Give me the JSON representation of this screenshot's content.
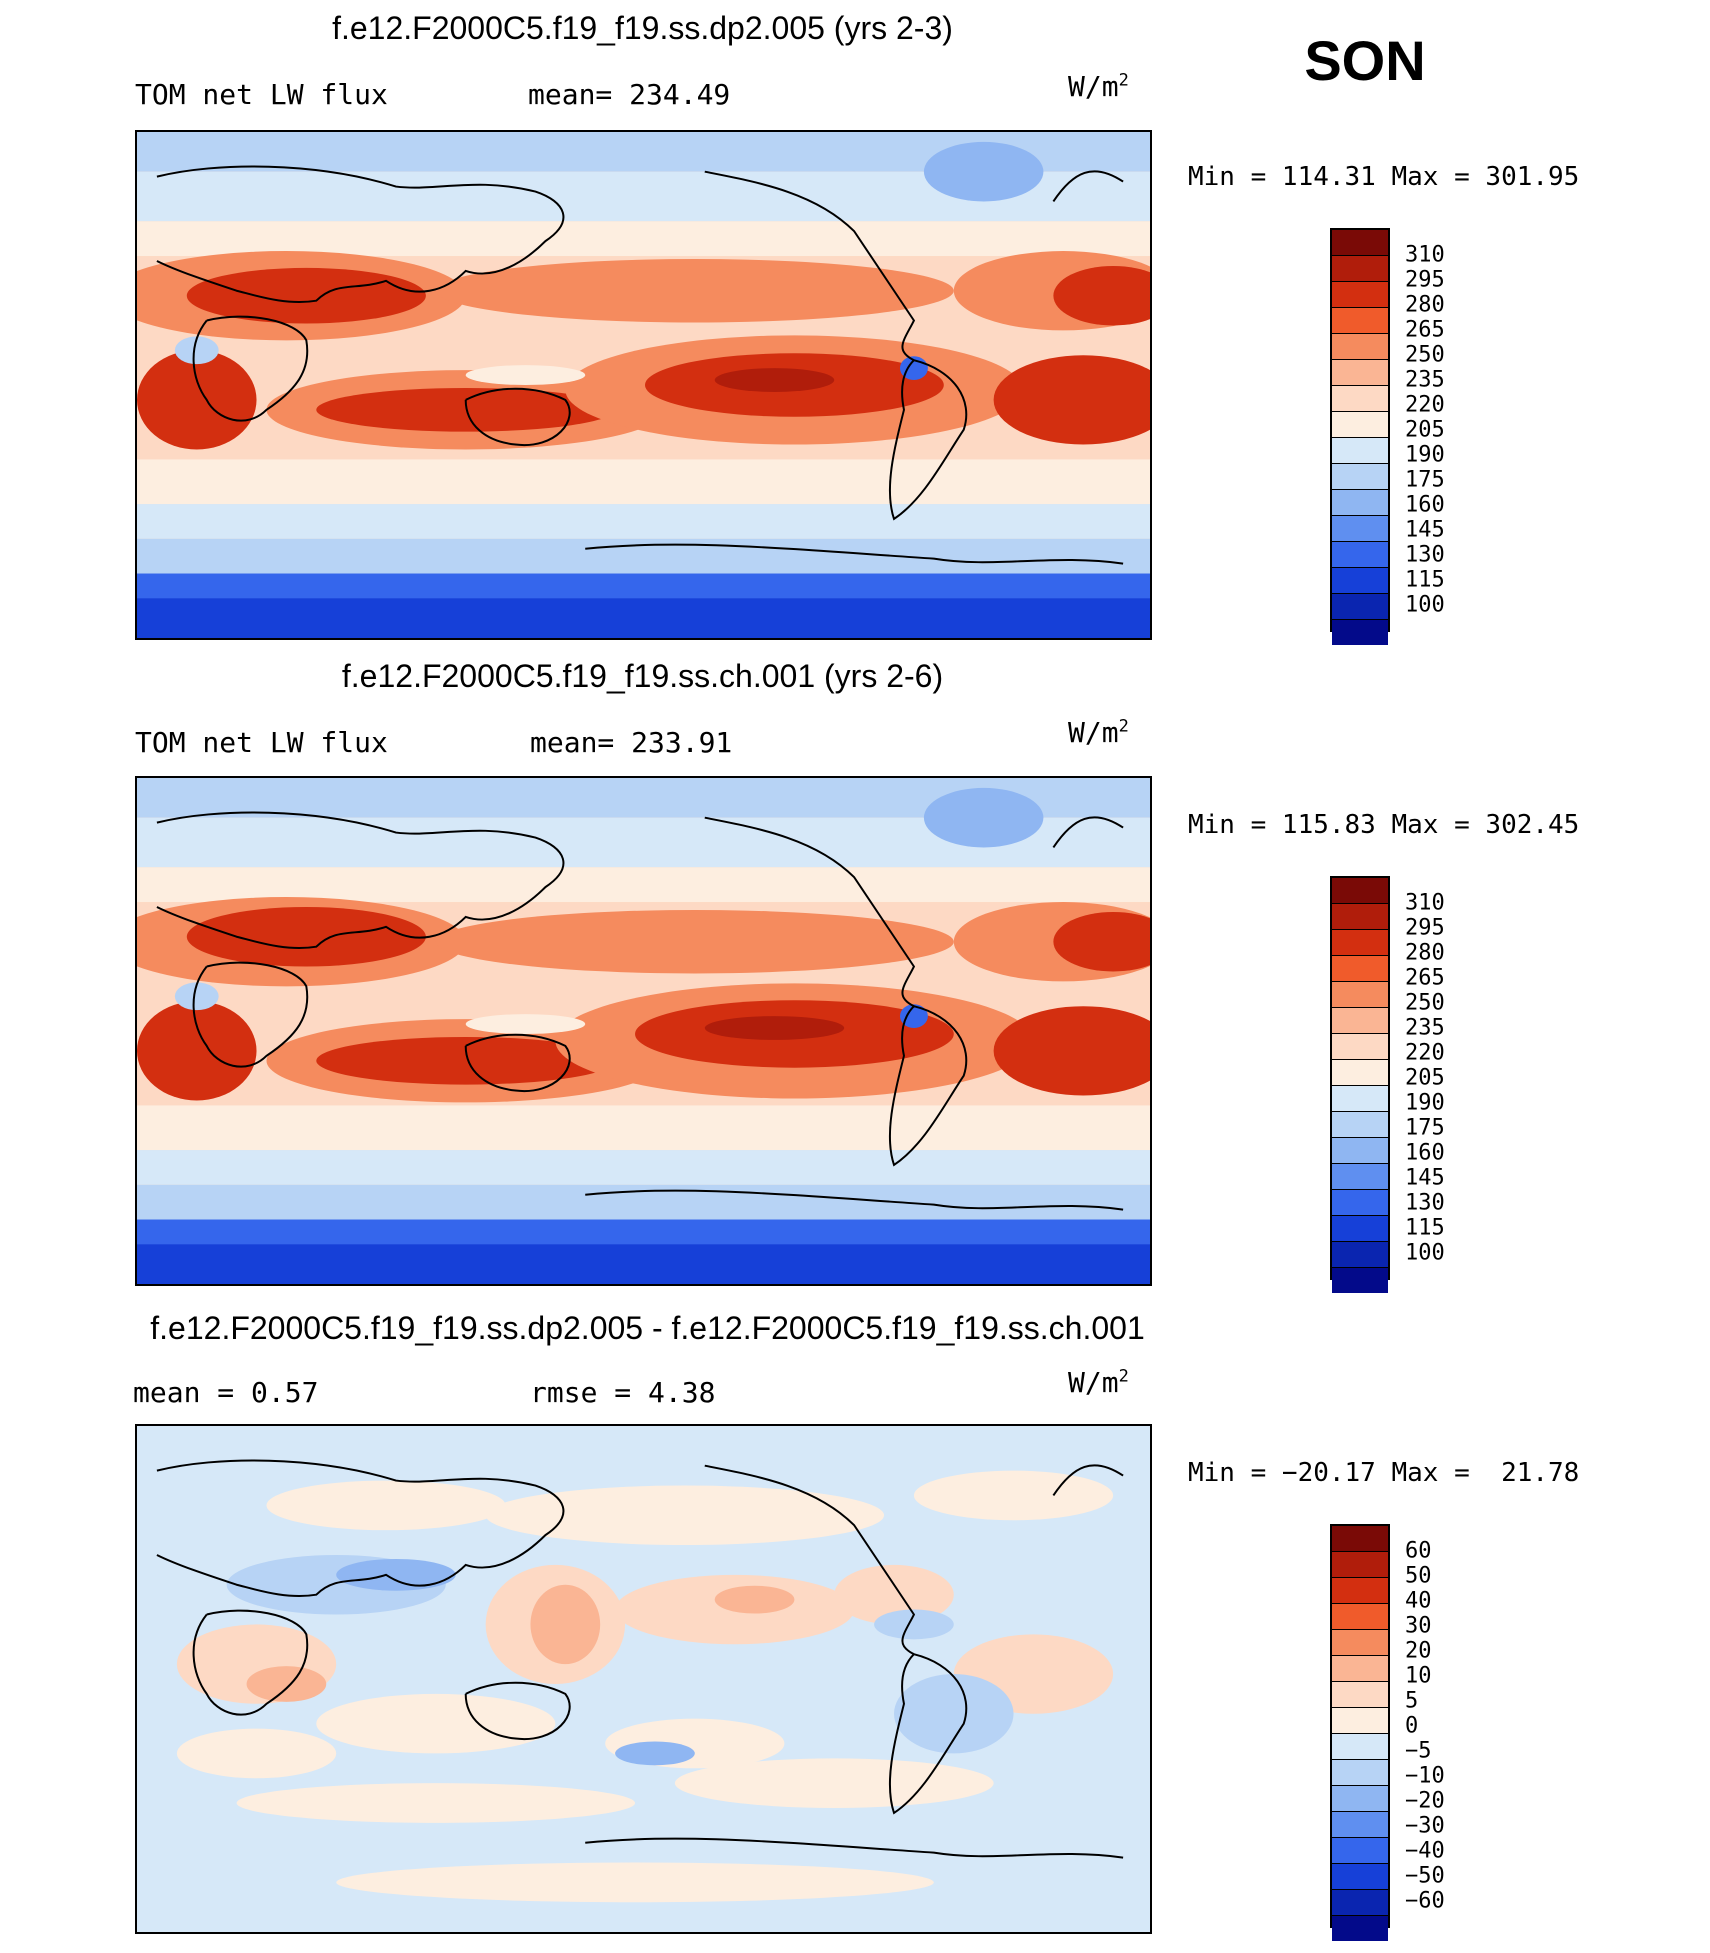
{
  "figure": {
    "season": "SON"
  },
  "panels": [
    {
      "title": "f.e12.F2000C5.f19_f19.ss.dp2.005 (yrs 2-3)",
      "left_label": "TOM net LW flux",
      "mid_label": "mean= 234.49",
      "units": "W/m",
      "units_exp": "2",
      "minmax": "Min = 114.31 Max = 301.95",
      "colorbar": {
        "labels": [
          "310",
          "295",
          "280",
          "265",
          "250",
          "235",
          "220",
          "205",
          "190",
          "175",
          "160",
          "145",
          "130",
          "115",
          "100"
        ],
        "colors": [
          "#7a0a06",
          "#b01d0b",
          "#d32f10",
          "#f05b2b",
          "#f58b5e",
          "#fab594",
          "#fdd9c4",
          "#fdeee0",
          "#d6e8f8",
          "#b7d3f5",
          "#8fb6f2",
          "#5f8ff0",
          "#3566ec",
          "#1640d8",
          "#0a25b0",
          "#030a8a"
        ]
      },
      "map_theme": "absolute"
    },
    {
      "title": "f.e12.F2000C5.f19_f19.ss.ch.001 (yrs 2-6)",
      "left_label": "TOM net LW flux",
      "mid_label": "mean= 233.91",
      "units": "W/m",
      "units_exp": "2",
      "minmax": "Min = 115.83 Max = 302.45",
      "colorbar": {
        "labels": [
          "310",
          "295",
          "280",
          "265",
          "250",
          "235",
          "220",
          "205",
          "190",
          "175",
          "160",
          "145",
          "130",
          "115",
          "100"
        ],
        "colors": [
          "#7a0a06",
          "#b01d0b",
          "#d32f10",
          "#f05b2b",
          "#f58b5e",
          "#fab594",
          "#fdd9c4",
          "#fdeee0",
          "#d6e8f8",
          "#b7d3f5",
          "#8fb6f2",
          "#5f8ff0",
          "#3566ec",
          "#1640d8",
          "#0a25b0",
          "#030a8a"
        ]
      },
      "map_theme": "absolute"
    },
    {
      "title": "f.e12.F2000C5.f19_f19.ss.dp2.005 - f.e12.F2000C5.f19_f19.ss.ch.001",
      "left_label": "mean =    0.57",
      "mid_label": "rmse =    4.38",
      "units": "W/m",
      "units_exp": "2",
      "minmax": "Min = −20.17 Max =  21.78",
      "colorbar": {
        "labels": [
          "60",
          "50",
          "40",
          "30",
          "20",
          "10",
          "5",
          "0",
          "−5",
          "−10",
          "−20",
          "−30",
          "−40",
          "−50",
          "−60"
        ],
        "colors": [
          "#7a0a06",
          "#b01d0b",
          "#d32f10",
          "#f05b2b",
          "#f58b5e",
          "#fab594",
          "#fdd9c4",
          "#fdeee0",
          "#d6e8f8",
          "#b7d3f5",
          "#8fb6f2",
          "#5f8ff0",
          "#3566ec",
          "#1640d8",
          "#0a25b0",
          "#030a8a"
        ]
      },
      "map_theme": "difference"
    }
  ]
}
